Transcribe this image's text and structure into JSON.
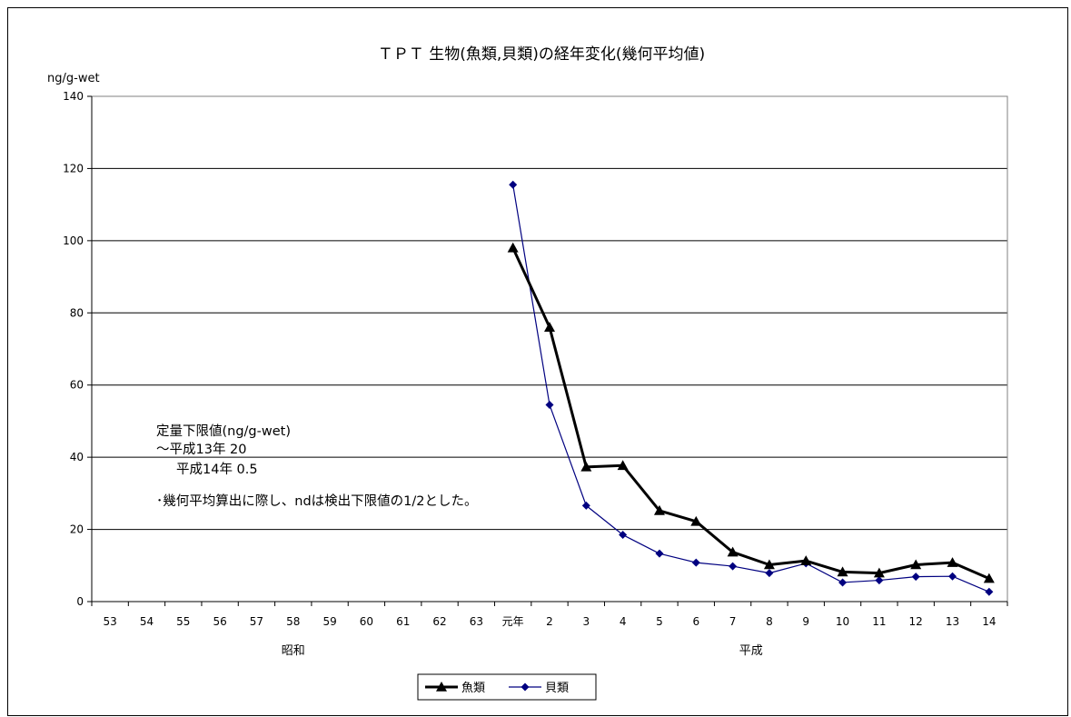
{
  "chart_data": {
    "type": "line",
    "title": "ＴＰＴ 生物(魚類,貝類)の経年変化(幾何平均値)",
    "ylabel": "ng/g-wet",
    "ylim": [
      0,
      140
    ],
    "yticks": [
      "0",
      "20",
      "40",
      "60",
      "80",
      "100",
      "120",
      "140"
    ],
    "categories": [
      "53",
      "54",
      "55",
      "56",
      "57",
      "58",
      "59",
      "60",
      "61",
      "62",
      "63",
      "元年",
      "2",
      "3",
      "4",
      "5",
      "6",
      "7",
      "8",
      "9",
      "10",
      "11",
      "12",
      "13",
      "14"
    ],
    "eras": [
      "昭和",
      "平成"
    ],
    "grid": true,
    "legend_position": "bottom",
    "series": [
      {
        "name": "魚類",
        "color": "#000000",
        "marker": "triangle",
        "values": [
          null,
          null,
          null,
          null,
          null,
          null,
          null,
          null,
          null,
          null,
          null,
          98,
          76,
          37.3,
          37.7,
          25.2,
          22.2,
          13.7,
          10.2,
          11.3,
          8.2,
          7.9,
          10.2,
          10.8,
          6.4
        ]
      },
      {
        "name": "貝類",
        "color": "#000080",
        "marker": "diamond",
        "values": [
          null,
          null,
          null,
          null,
          null,
          null,
          null,
          null,
          null,
          null,
          null,
          115.5,
          54.5,
          26.6,
          18.5,
          13.3,
          10.8,
          9.8,
          7.9,
          10.6,
          5.3,
          5.9,
          6.9,
          7.0,
          2.7
        ]
      }
    ],
    "annotation": {
      "line1": "定量下限値(ng/g-wet)",
      "line2": "～平成13年  20",
      "line3": "平成14年   0.5",
      "line4": "･幾何平均算出に際し、ndは検出下限値の1/2とした。"
    }
  }
}
